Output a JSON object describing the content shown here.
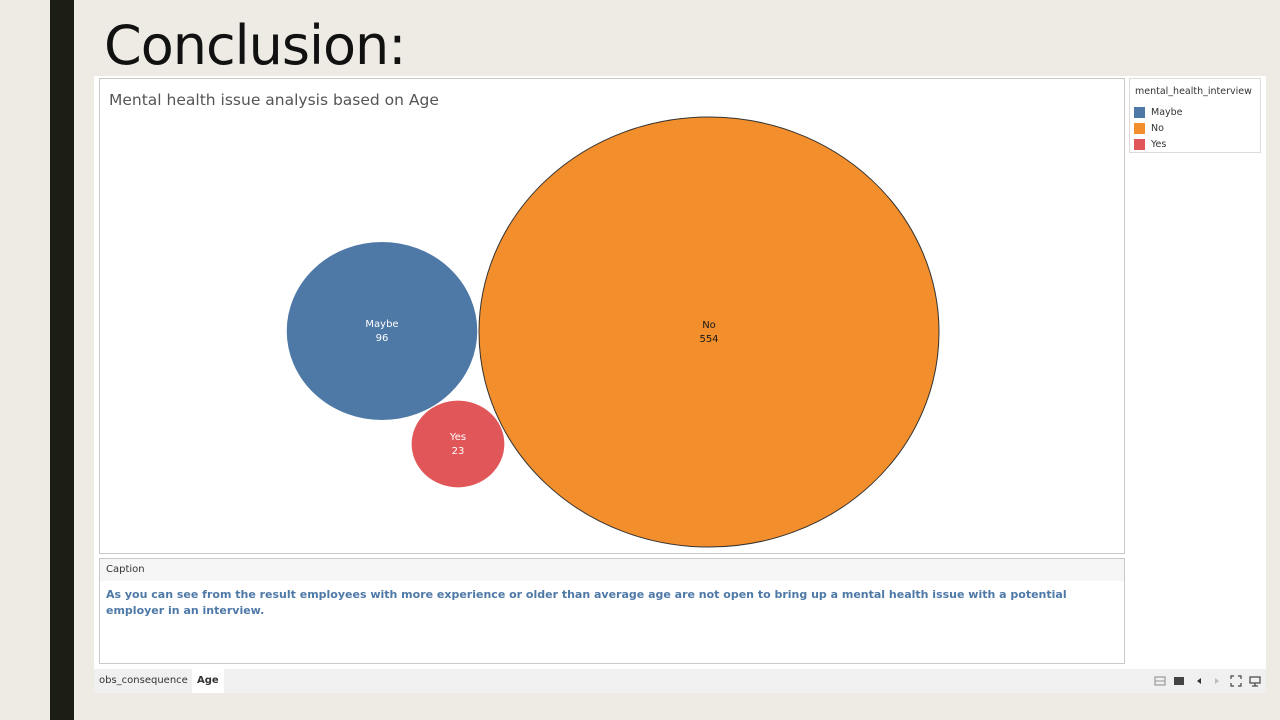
{
  "slide": {
    "title": "Conclusion:"
  },
  "chart_data": {
    "type": "bubble",
    "title": "Mental health issue analysis based on Age",
    "legend_title": "mental_health_interview",
    "legend_position": "top-right",
    "series": [
      {
        "name": "Maybe",
        "value": 96,
        "color": "#4e79a7"
      },
      {
        "name": "No",
        "value": 554,
        "color": "#f28e2b"
      },
      {
        "name": "Yes",
        "value": 23,
        "color": "#e15759"
      }
    ]
  },
  "caption": {
    "header": "Caption",
    "text": "As you can see from the result employees with more experience or older than average age are not open to bring up a mental health issue with a potential employer in an interview."
  },
  "tabs": [
    {
      "label": "obs_consequence",
      "active": false
    },
    {
      "label": "Age",
      "active": true
    }
  ],
  "toolbar": {
    "icons": [
      "grid-view-icon",
      "single-view-icon",
      "previous-icon",
      "next-icon",
      "fullscreen-icon",
      "presentation-icon"
    ]
  }
}
